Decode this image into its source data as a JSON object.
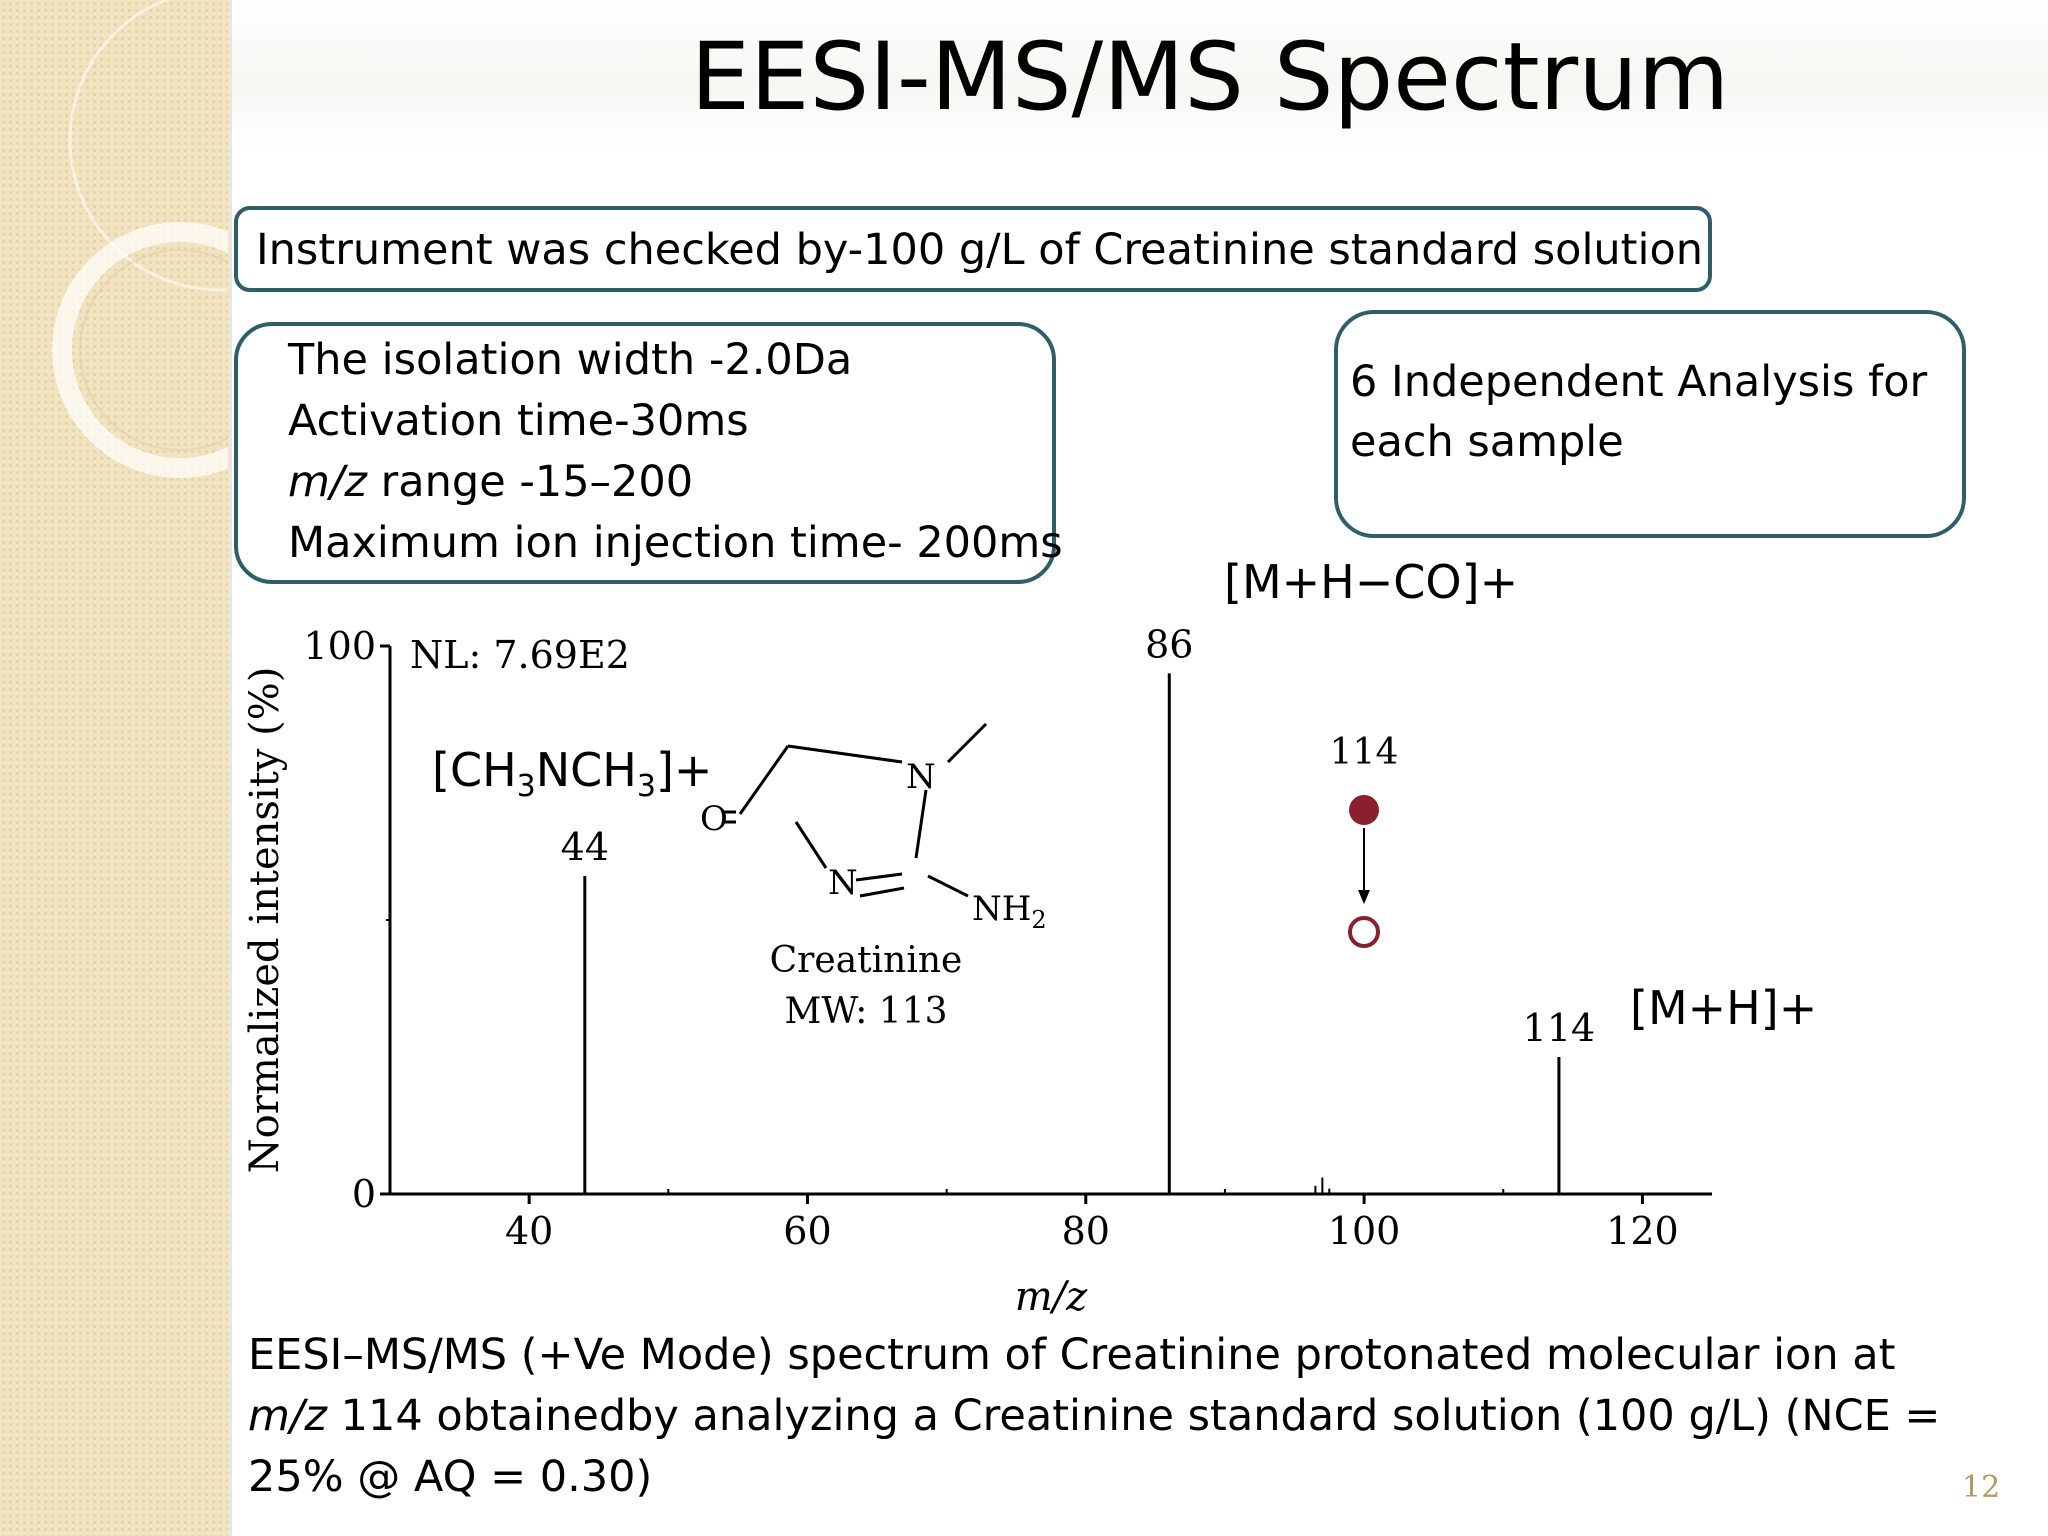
{
  "slide": {
    "title": "EESI-MS/MS Spectrum",
    "page_number": "12",
    "instrument_box": "Instrument was checked  by-100 g/L of Creatinine standard solution",
    "params": [
      "The isolation width -2.0Da",
      "Activation time-30ms",
      {
        "italic": "m/z",
        "rest": " range -15–200"
      },
      "Maximum ion injection time- 200ms"
    ],
    "analysis_box": [
      "6 Independent Analysis for",
      "each sample"
    ],
    "caption": {
      "part1": "EESI–MS/MS (+Ve Mode) spectrum of Creatinine protonated molecular ion at ",
      "mz": "m/z",
      "part2": " 114 obtainedby analyzing a Creatinine standard solution (100 g/L)  (NCE = 25% @ AQ = 0.30)"
    },
    "accent_color": "#2e5f68",
    "sidebar_color": "#f1e3c0"
  },
  "chart_data": {
    "type": "bar",
    "title": "",
    "xlabel": "m/z",
    "ylabel": "Normalized intensity (%)",
    "xlim": [
      30,
      125
    ],
    "ylim": [
      0,
      100
    ],
    "xticks": [
      40,
      60,
      80,
      100,
      120
    ],
    "yticks": [
      0,
      100
    ],
    "nl_label": "NL: 7.69E2",
    "peaks": [
      {
        "mz": 44,
        "intensity": 58,
        "label": "44",
        "annotation": "[CH3NCH3]+"
      },
      {
        "mz": 86,
        "intensity": 95,
        "label": "86",
        "annotation": "[M+H−CO]+"
      },
      {
        "mz": 114,
        "intensity": 25,
        "label": "114",
        "annotation": "[M+H]+"
      }
    ],
    "minor_peaks": [
      {
        "mz": 96.5,
        "intensity": 1.5
      },
      {
        "mz": 97,
        "intensity": 3
      },
      {
        "mz": 97.5,
        "intensity": 1
      }
    ],
    "inset": {
      "compound": "Creatinine",
      "mw": "MW: 113",
      "atoms": {
        "o": "O",
        "n1": "N",
        "n2": "N",
        "nh": "NH",
        "sub2": "2"
      },
      "precursor_label": "114"
    }
  }
}
